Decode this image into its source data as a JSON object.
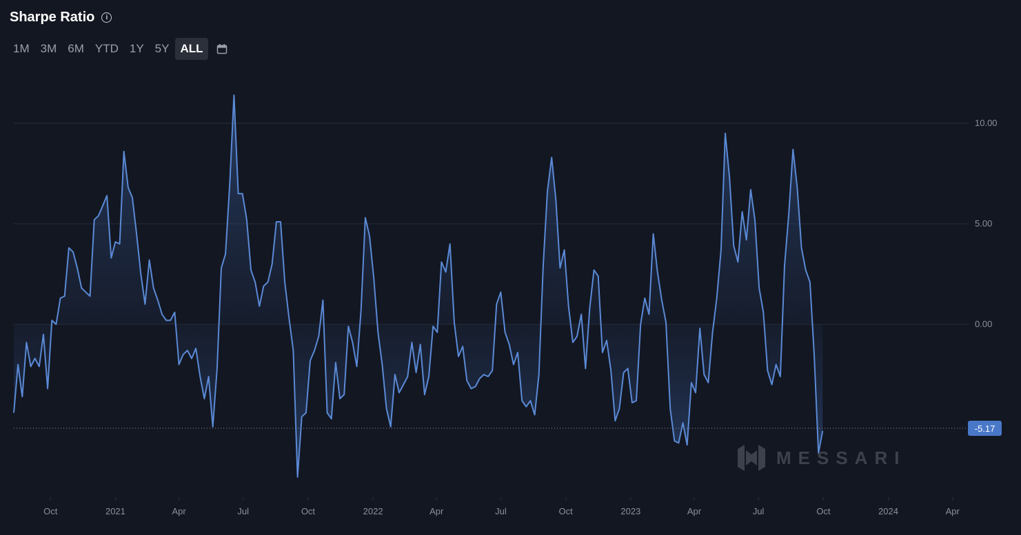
{
  "header": {
    "title": "Sharpe Ratio",
    "info_icon": "info-icon"
  },
  "toolbar": {
    "ranges": [
      "1M",
      "3M",
      "6M",
      "YTD",
      "1Y",
      "5Y",
      "ALL"
    ],
    "active_range": "ALL",
    "calendar_icon": "calendar-icon"
  },
  "watermark": {
    "text": "MESSARI",
    "logo_icon": "messari-logo-icon"
  },
  "colors": {
    "background": "#131722",
    "line": "#5b8ad6",
    "grid": "#2a2e39",
    "badge": "#4a78c8",
    "text": "#8b909b"
  },
  "chart_data": {
    "type": "area",
    "title": "Sharpe Ratio",
    "xlabel": "",
    "ylabel": "",
    "x_ticks": [
      "Oct",
      "2021",
      "Apr",
      "Jul",
      "Oct",
      "2022",
      "Apr",
      "Jul",
      "Oct",
      "2023",
      "Apr",
      "Jul",
      "Oct",
      "2024",
      "Apr"
    ],
    "y_ticks": [
      "10.00",
      "5.00",
      "0.00"
    ],
    "ylim": [
      -8.1,
      11.5
    ],
    "x_range": [
      "2020-08-10",
      "2024-04-14"
    ],
    "grid": true,
    "current_value": -5.17,
    "current_value_label": "-5.17",
    "series": [
      {
        "name": "",
        "points": [
          [
            "2020-08-10",
            -4.4
          ],
          [
            "2020-08-16",
            -2.0
          ],
          [
            "2020-08-22",
            -3.6
          ],
          [
            "2020-08-28",
            -0.9
          ],
          [
            "2020-09-03",
            -2.1
          ],
          [
            "2020-09-09",
            -1.7
          ],
          [
            "2020-09-15",
            -2.1
          ],
          [
            "2020-09-21",
            -0.5
          ],
          [
            "2020-09-27",
            -3.2
          ],
          [
            "2020-10-03",
            0.2
          ],
          [
            "2020-10-09",
            0.0
          ],
          [
            "2020-10-15",
            1.3
          ],
          [
            "2020-10-21",
            1.4
          ],
          [
            "2020-10-27",
            3.8
          ],
          [
            "2020-11-02",
            3.6
          ],
          [
            "2020-11-08",
            2.8
          ],
          [
            "2020-11-14",
            1.8
          ],
          [
            "2020-11-20",
            1.6
          ],
          [
            "2020-11-26",
            1.4
          ],
          [
            "2020-12-02",
            5.2
          ],
          [
            "2020-12-08",
            5.4
          ],
          [
            "2020-12-14",
            5.9
          ],
          [
            "2020-12-20",
            6.4
          ],
          [
            "2020-12-26",
            3.3
          ],
          [
            "2021-01-01",
            4.1
          ],
          [
            "2021-01-07",
            4.0
          ],
          [
            "2021-01-13",
            8.6
          ],
          [
            "2021-01-19",
            6.8
          ],
          [
            "2021-01-25",
            6.3
          ],
          [
            "2021-01-31",
            4.5
          ],
          [
            "2021-02-06",
            2.5
          ],
          [
            "2021-02-12",
            1.0
          ],
          [
            "2021-02-18",
            3.2
          ],
          [
            "2021-02-24",
            1.8
          ],
          [
            "2021-03-02",
            1.2
          ],
          [
            "2021-03-08",
            0.5
          ],
          [
            "2021-03-14",
            0.2
          ],
          [
            "2021-03-20",
            0.2
          ],
          [
            "2021-03-26",
            0.6
          ],
          [
            "2021-04-01",
            -2.0
          ],
          [
            "2021-04-07",
            -1.5
          ],
          [
            "2021-04-13",
            -1.3
          ],
          [
            "2021-04-19",
            -1.7
          ],
          [
            "2021-04-25",
            -1.2
          ],
          [
            "2021-05-01",
            -2.6
          ],
          [
            "2021-05-07",
            -3.7
          ],
          [
            "2021-05-13",
            -2.6
          ],
          [
            "2021-05-19",
            -5.1
          ],
          [
            "2021-05-25",
            -2.2
          ],
          [
            "2021-05-31",
            2.8
          ],
          [
            "2021-06-06",
            3.5
          ],
          [
            "2021-06-12",
            7.0
          ],
          [
            "2021-06-18",
            11.4
          ],
          [
            "2021-06-24",
            6.5
          ],
          [
            "2021-06-30",
            6.5
          ],
          [
            "2021-07-06",
            5.2
          ],
          [
            "2021-07-12",
            2.7
          ],
          [
            "2021-07-18",
            2.1
          ],
          [
            "2021-07-24",
            0.9
          ],
          [
            "2021-07-30",
            1.9
          ],
          [
            "2021-08-05",
            2.1
          ],
          [
            "2021-08-11",
            3.0
          ],
          [
            "2021-08-17",
            5.1
          ],
          [
            "2021-08-23",
            5.1
          ],
          [
            "2021-08-29",
            2.1
          ],
          [
            "2021-09-04",
            0.3
          ],
          [
            "2021-09-10",
            -1.3
          ],
          [
            "2021-09-16",
            -7.6
          ],
          [
            "2021-09-22",
            -4.6
          ],
          [
            "2021-09-28",
            -4.4
          ],
          [
            "2021-10-04",
            -1.8
          ],
          [
            "2021-10-10",
            -1.3
          ],
          [
            "2021-10-16",
            -0.6
          ],
          [
            "2021-10-22",
            1.2
          ],
          [
            "2021-10-28",
            -4.4
          ],
          [
            "2021-11-03",
            -4.7
          ],
          [
            "2021-11-09",
            -1.9
          ],
          [
            "2021-11-15",
            -3.7
          ],
          [
            "2021-11-21",
            -3.5
          ],
          [
            "2021-11-27",
            -0.1
          ],
          [
            "2021-12-03",
            -0.9
          ],
          [
            "2021-12-09",
            -2.1
          ],
          [
            "2021-12-15",
            0.7
          ],
          [
            "2021-12-21",
            5.3
          ],
          [
            "2021-12-27",
            4.4
          ],
          [
            "2022-01-02",
            2.3
          ],
          [
            "2022-01-08",
            -0.4
          ],
          [
            "2022-01-14",
            -2.0
          ],
          [
            "2022-01-20",
            -4.2
          ],
          [
            "2022-01-26",
            -5.1
          ],
          [
            "2022-02-01",
            -2.5
          ],
          [
            "2022-02-07",
            -3.4
          ],
          [
            "2022-02-13",
            -3.0
          ],
          [
            "2022-02-19",
            -2.6
          ],
          [
            "2022-02-25",
            -0.9
          ],
          [
            "2022-03-03",
            -2.4
          ],
          [
            "2022-03-09",
            -1.0
          ],
          [
            "2022-03-15",
            -3.5
          ],
          [
            "2022-03-21",
            -2.6
          ],
          [
            "2022-03-27",
            -0.1
          ],
          [
            "2022-04-02",
            -0.4
          ],
          [
            "2022-04-08",
            3.1
          ],
          [
            "2022-04-14",
            2.6
          ],
          [
            "2022-04-20",
            4.0
          ],
          [
            "2022-04-26",
            0.1
          ],
          [
            "2022-05-02",
            -1.6
          ],
          [
            "2022-05-08",
            -1.1
          ],
          [
            "2022-05-14",
            -2.8
          ],
          [
            "2022-05-20",
            -3.2
          ],
          [
            "2022-05-26",
            -3.1
          ],
          [
            "2022-06-01",
            -2.7
          ],
          [
            "2022-06-07",
            -2.5
          ],
          [
            "2022-06-13",
            -2.6
          ],
          [
            "2022-06-19",
            -2.3
          ],
          [
            "2022-06-25",
            1.0
          ],
          [
            "2022-07-01",
            1.6
          ],
          [
            "2022-07-07",
            -0.4
          ],
          [
            "2022-07-13",
            -1.0
          ],
          [
            "2022-07-19",
            -2.0
          ],
          [
            "2022-07-25",
            -1.4
          ],
          [
            "2022-07-31",
            -3.8
          ],
          [
            "2022-08-06",
            -4.1
          ],
          [
            "2022-08-12",
            -3.8
          ],
          [
            "2022-08-18",
            -4.5
          ],
          [
            "2022-08-24",
            -2.5
          ],
          [
            "2022-08-30",
            2.9
          ],
          [
            "2022-09-05",
            6.6
          ],
          [
            "2022-09-11",
            8.3
          ],
          [
            "2022-09-17",
            6.2
          ],
          [
            "2022-09-23",
            2.8
          ],
          [
            "2022-09-29",
            3.7
          ],
          [
            "2022-10-05",
            0.9
          ],
          [
            "2022-10-11",
            -0.9
          ],
          [
            "2022-10-17",
            -0.6
          ],
          [
            "2022-10-23",
            0.5
          ],
          [
            "2022-10-29",
            -2.2
          ],
          [
            "2022-11-04",
            0.8
          ],
          [
            "2022-11-10",
            2.7
          ],
          [
            "2022-11-16",
            2.4
          ],
          [
            "2022-11-22",
            -1.4
          ],
          [
            "2022-11-28",
            -0.8
          ],
          [
            "2022-12-04",
            -2.3
          ],
          [
            "2022-12-10",
            -4.8
          ],
          [
            "2022-12-16",
            -4.2
          ],
          [
            "2022-12-22",
            -2.4
          ],
          [
            "2022-12-28",
            -2.2
          ],
          [
            "2023-01-03",
            -3.9
          ],
          [
            "2023-01-09",
            -3.8
          ],
          [
            "2023-01-15",
            0.0
          ],
          [
            "2023-01-21",
            1.3
          ],
          [
            "2023-01-27",
            0.5
          ],
          [
            "2023-02-02",
            4.5
          ],
          [
            "2023-02-08",
            2.6
          ],
          [
            "2023-02-14",
            1.2
          ],
          [
            "2023-02-20",
            0.1
          ],
          [
            "2023-02-26",
            -4.2
          ],
          [
            "2023-03-04",
            -5.8
          ],
          [
            "2023-03-10",
            -5.9
          ],
          [
            "2023-03-16",
            -4.9
          ],
          [
            "2023-03-22",
            -6.0
          ],
          [
            "2023-03-28",
            -2.9
          ],
          [
            "2023-04-03",
            -3.4
          ],
          [
            "2023-04-09",
            -0.2
          ],
          [
            "2023-04-15",
            -2.5
          ],
          [
            "2023-04-21",
            -2.9
          ],
          [
            "2023-04-27",
            -0.4
          ],
          [
            "2023-05-03",
            1.3
          ],
          [
            "2023-05-09",
            3.7
          ],
          [
            "2023-05-15",
            9.5
          ],
          [
            "2023-05-21",
            7.3
          ],
          [
            "2023-05-27",
            3.9
          ],
          [
            "2023-06-02",
            3.1
          ],
          [
            "2023-06-08",
            5.6
          ],
          [
            "2023-06-14",
            4.2
          ],
          [
            "2023-06-20",
            6.7
          ],
          [
            "2023-06-26",
            5.2
          ],
          [
            "2023-07-02",
            1.8
          ],
          [
            "2023-07-08",
            0.6
          ],
          [
            "2023-07-14",
            -2.3
          ],
          [
            "2023-07-20",
            -3.0
          ],
          [
            "2023-07-26",
            -2.0
          ],
          [
            "2023-08-01",
            -2.6
          ],
          [
            "2023-08-07",
            2.9
          ],
          [
            "2023-08-13",
            5.5
          ],
          [
            "2023-08-19",
            8.7
          ],
          [
            "2023-08-25",
            6.8
          ],
          [
            "2023-08-31",
            3.8
          ],
          [
            "2023-09-06",
            2.7
          ],
          [
            "2023-09-12",
            2.1
          ],
          [
            "2023-09-18",
            -1.5
          ],
          [
            "2023-09-24",
            -6.4
          ],
          [
            "2023-09-30",
            -5.3
          ]
        ]
      }
    ]
  }
}
